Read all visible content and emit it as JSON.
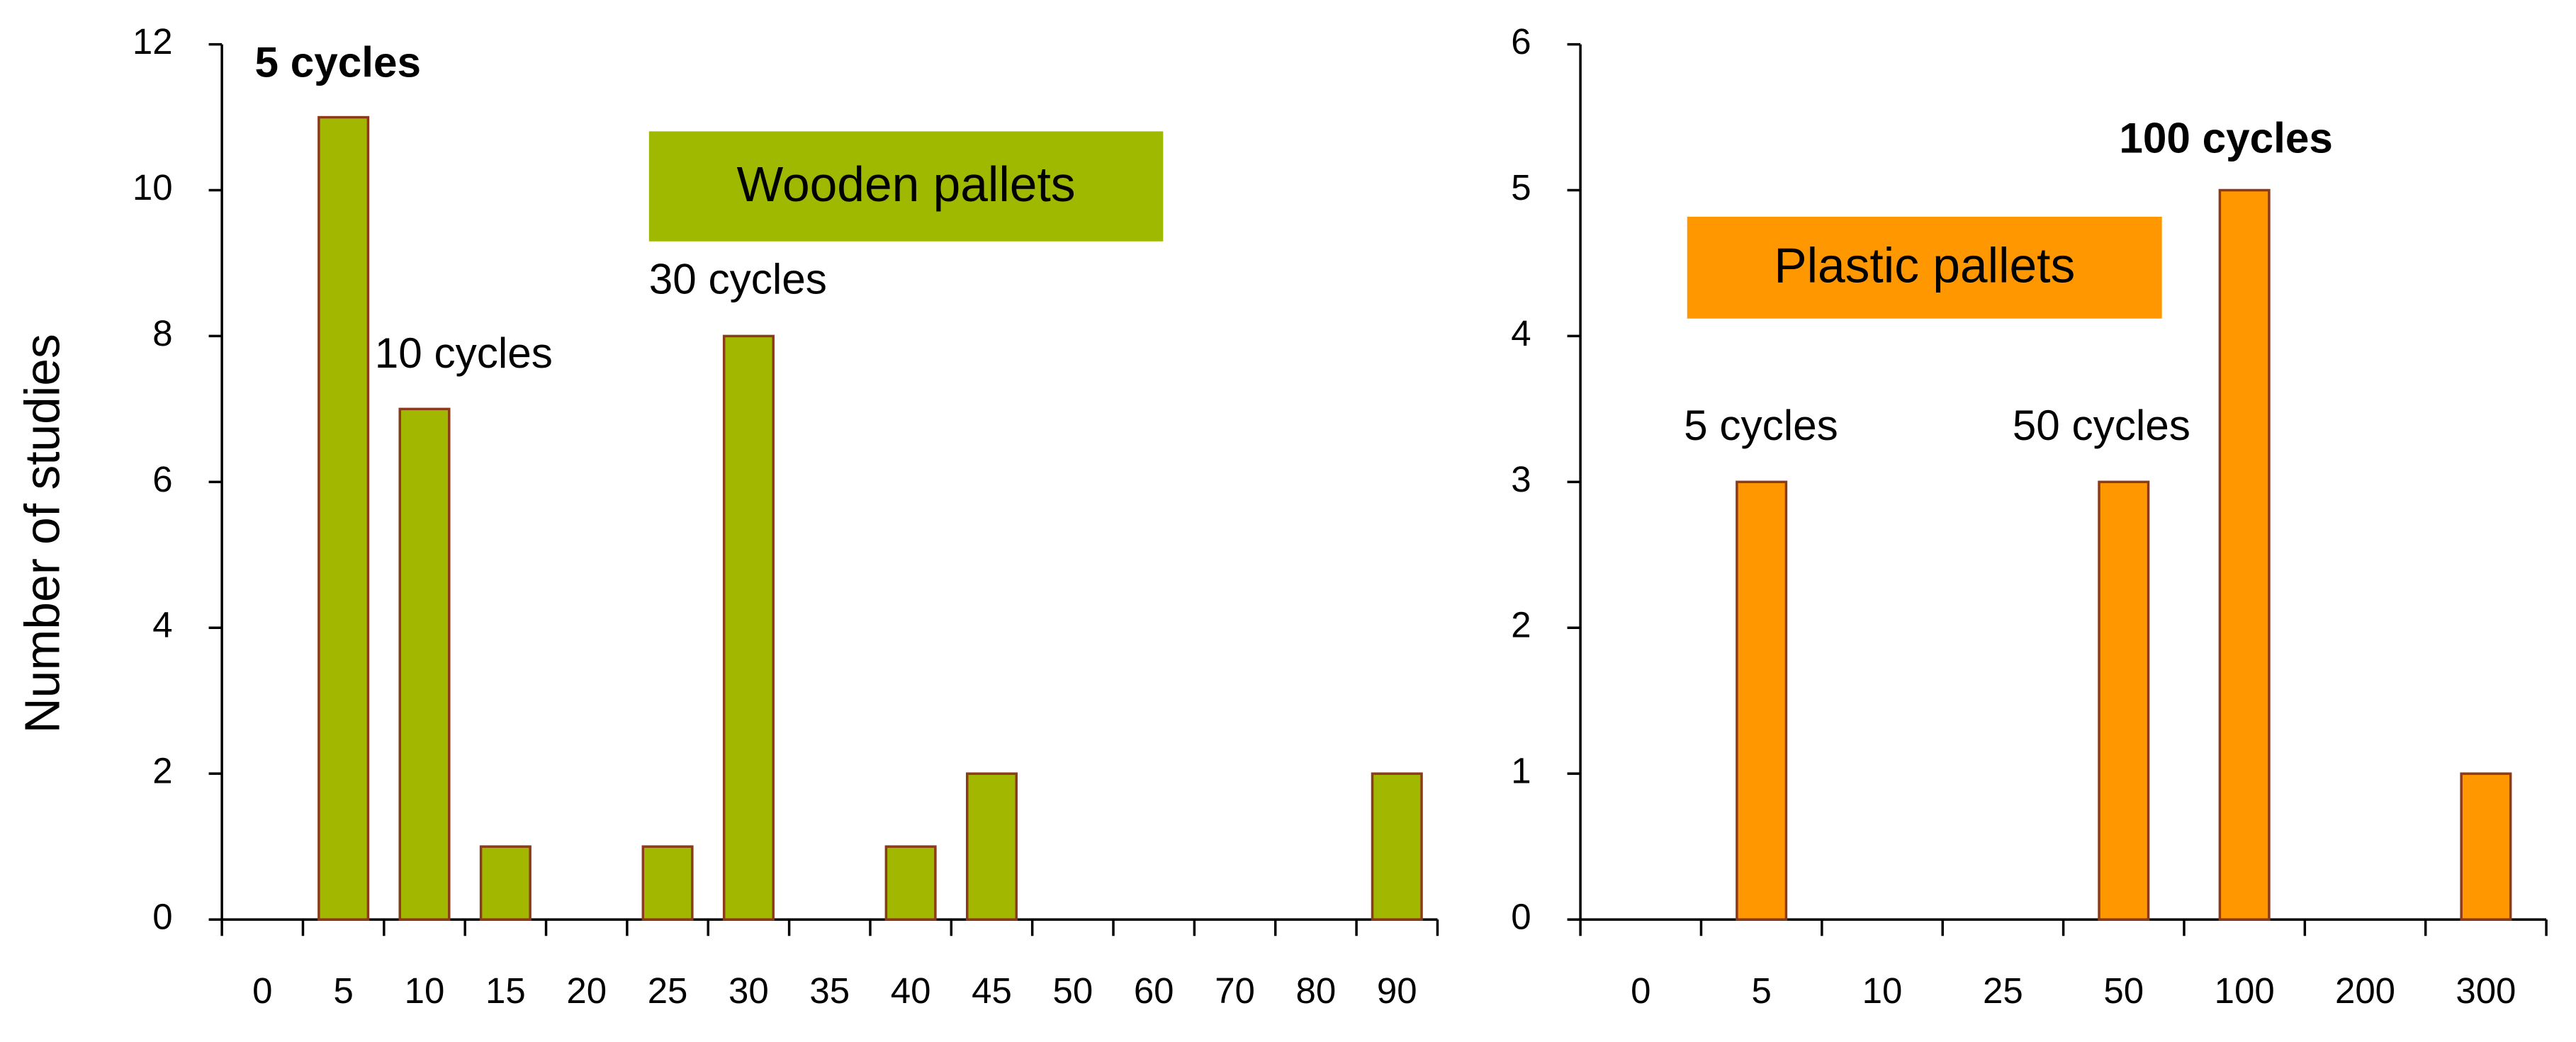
{
  "chart_data": [
    {
      "type": "bar",
      "y_label": "Number of studies",
      "categories": [
        "0",
        "5",
        "10",
        "15",
        "20",
        "25",
        "30",
        "35",
        "40",
        "45",
        "50",
        "60",
        "70",
        "80",
        "90"
      ],
      "values": [
        0,
        11,
        7,
        1,
        0,
        1,
        8,
        0,
        1,
        2,
        0,
        0,
        0,
        0,
        2
      ],
      "color": "#a2b800",
      "edge_color": "#8b3a1a",
      "ylim": [
        0,
        12
      ],
      "yticks": [
        0,
        2,
        4,
        6,
        8,
        10,
        12
      ],
      "label_box": {
        "text": "Wooden pallets",
        "color": "#9fb800"
      },
      "annotations": [
        {
          "text": "5 cycles",
          "bold": true
        },
        {
          "text": "10 cycles",
          "bold": false
        },
        {
          "text": "30 cycles",
          "bold": false
        }
      ]
    },
    {
      "type": "bar",
      "categories": [
        "0",
        "5",
        "10",
        "25",
        "50",
        "100",
        "200",
        "300"
      ],
      "values": [
        0,
        3,
        0,
        0,
        3,
        5,
        0,
        1
      ],
      "color": "#ff9800",
      "edge_color": "#8b3a1a",
      "ylim": [
        0,
        6
      ],
      "yticks": [
        0,
        1,
        2,
        3,
        4,
        5,
        6
      ],
      "label_box": {
        "text": "Plastic pallets",
        "color": "#ff9800"
      },
      "annotations": [
        {
          "text": "5 cycles",
          "bold": false
        },
        {
          "text": "50 cycles",
          "bold": false
        },
        {
          "text": "100 cycles",
          "bold": true
        }
      ]
    }
  ]
}
